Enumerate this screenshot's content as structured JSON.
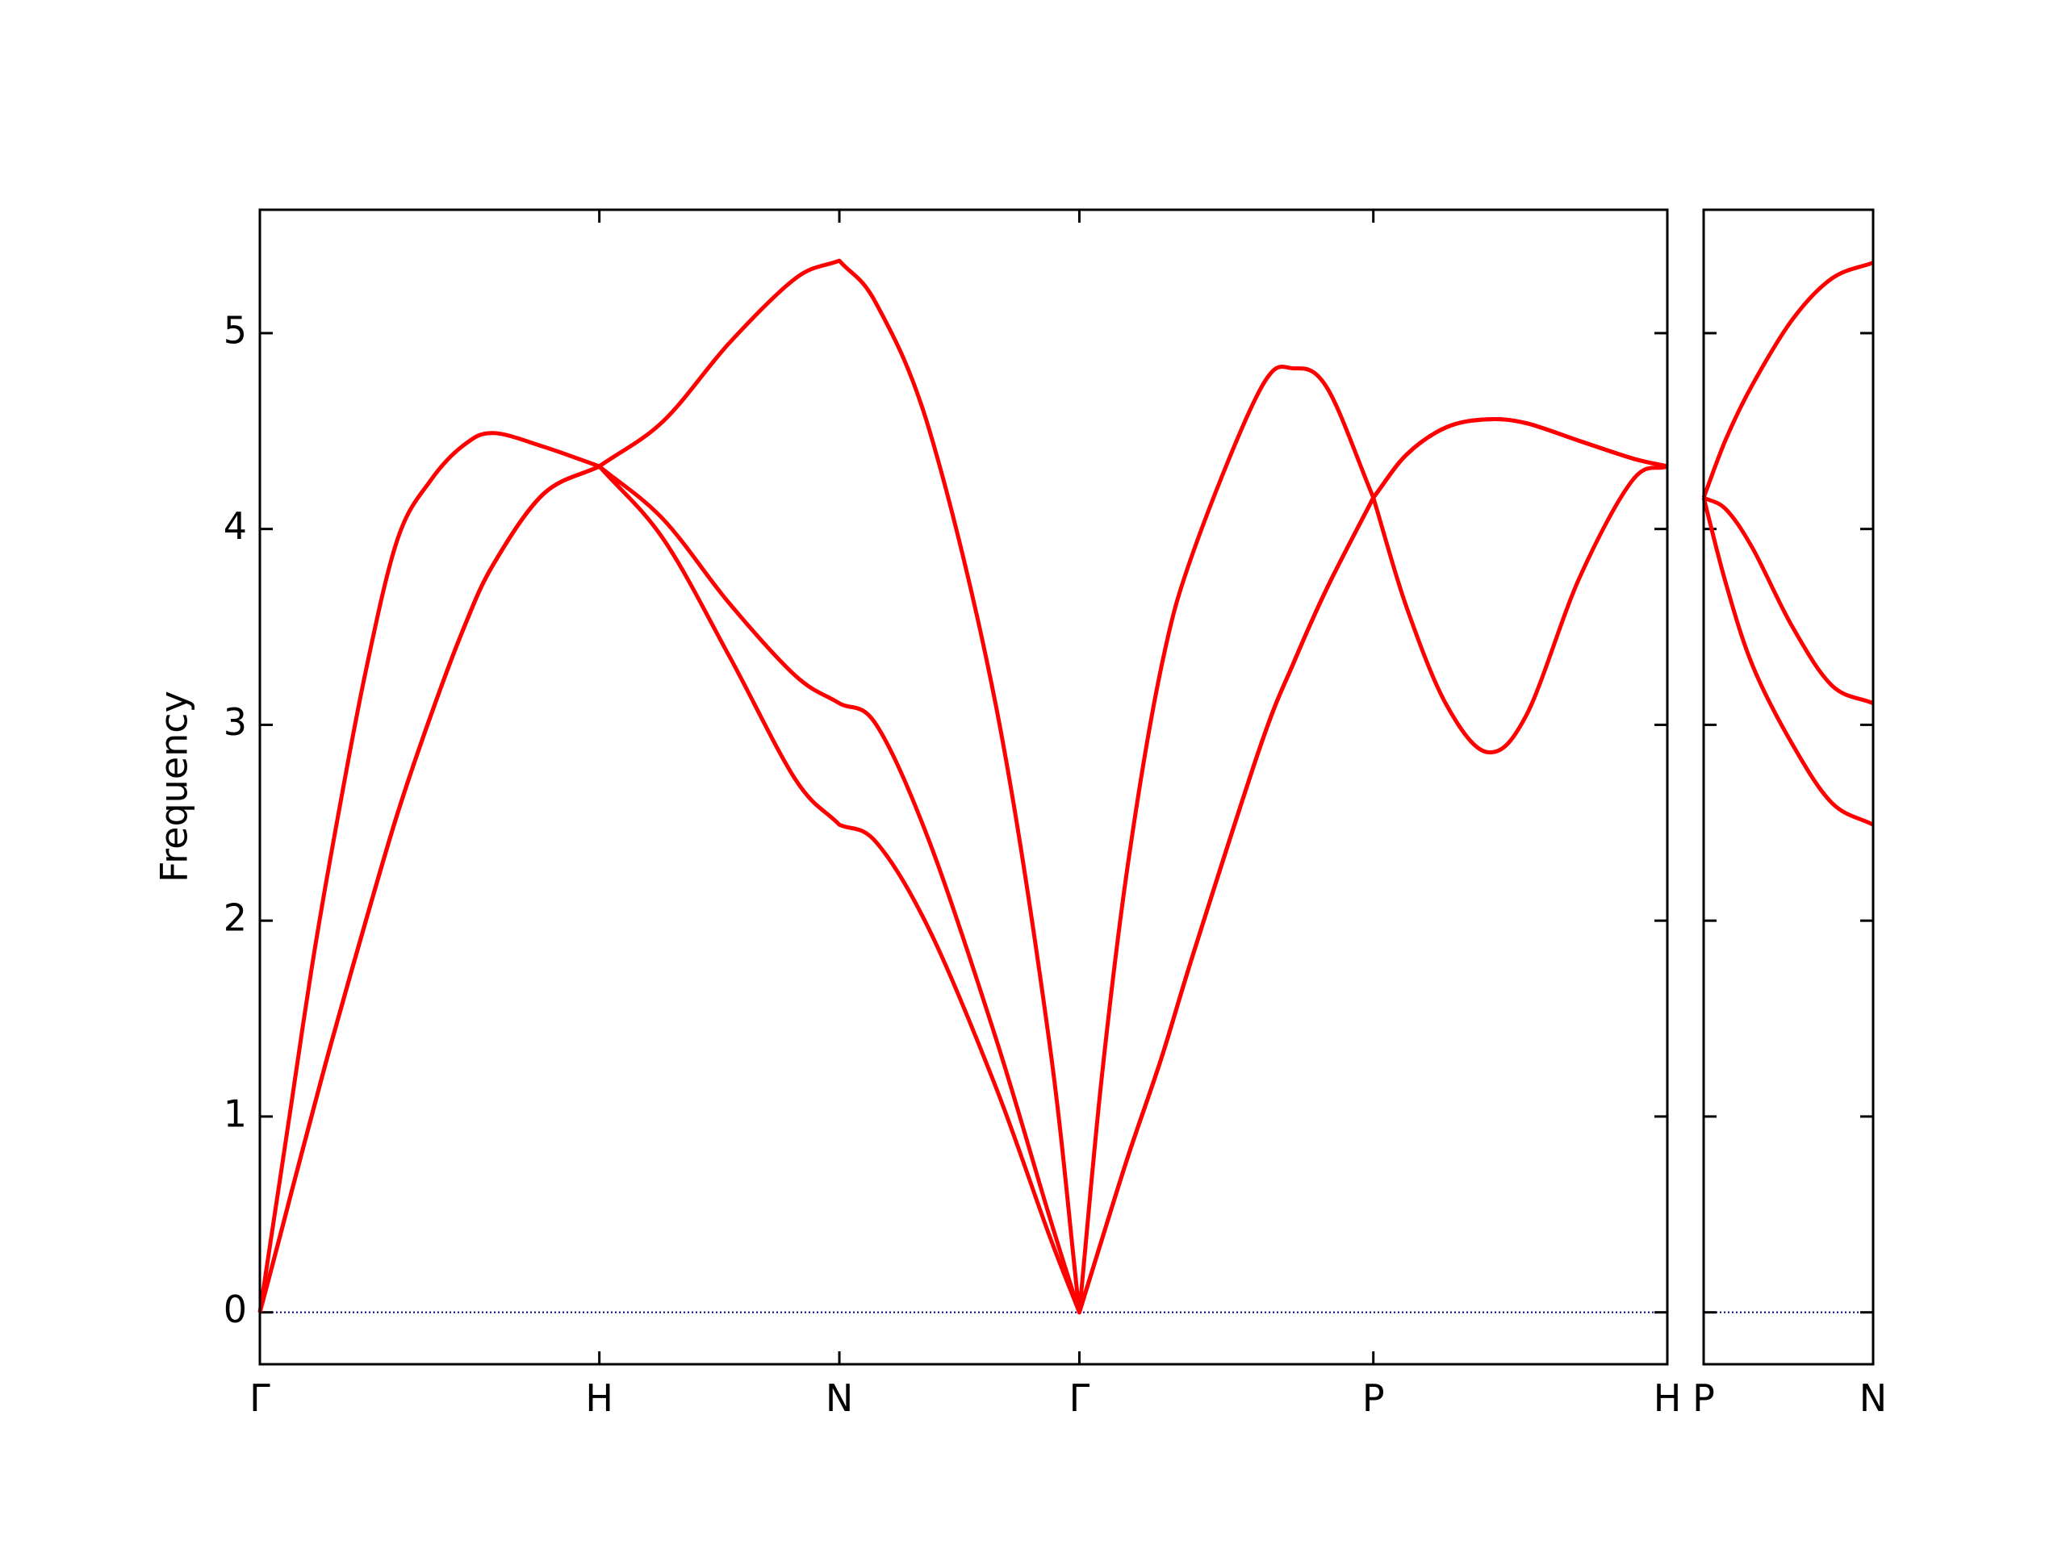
{
  "chart_data": [
    {
      "type": "line",
      "ylabel": "Frequency",
      "x": [
        0,
        0.055,
        0.094,
        0.152,
        0.211,
        0.309,
        0.406,
        0.504,
        0.602,
        0.688,
        0.836,
        1.0,
        1.188,
        1.383,
        1.578,
        1.707,
        1.816,
        1.973,
        2.168,
        2.324,
        2.414,
        2.48,
        2.558,
        2.656,
        2.753,
        2.949,
        3.046,
        3.144,
        3.28,
        3.378,
        3.496,
        3.617,
        3.731,
        3.887,
        4.044,
        4.146
      ],
      "series": [
        {
          "color": "#ff0000",
          "values": [
            0,
            0.36,
            0.62,
            1.0,
            1.38,
            1.98,
            2.55,
            3.05,
            3.5,
            3.82,
            4.18,
            4.32,
            3.95,
            3.35,
            2.72,
            2.49,
            2.4,
            1.95,
            1.15,
            0.4,
            0,
            0.37,
            0.8,
            1.3,
            1.85,
            2.9,
            3.32,
            3.7,
            4.16,
            3.6,
            3.1,
            2.86,
            3.05,
            3.75,
            4.25,
            4.32
          ]
        },
        {
          "color": "#ff0000",
          "values": [
            0,
            0.36,
            0.62,
            1.0,
            1.38,
            1.98,
            2.55,
            3.05,
            3.5,
            3.82,
            4.18,
            4.32,
            4.05,
            3.62,
            3.25,
            3.11,
            3.0,
            2.4,
            1.4,
            0.5,
            0,
            0.37,
            0.8,
            1.3,
            1.85,
            2.9,
            3.32,
            3.7,
            4.16,
            4.38,
            4.52,
            4.56,
            4.54,
            4.45,
            4.36,
            4.32
          ]
        },
        {
          "color": "#ff0000",
          "values": [
            0,
            0.63,
            1.08,
            1.75,
            2.35,
            3.25,
            3.95,
            4.25,
            4.43,
            4.49,
            4.42,
            4.32,
            4.55,
            4.95,
            5.28,
            5.37,
            5.15,
            4.5,
            3.1,
            1.4,
            0,
            1.2,
            2.3,
            3.3,
            3.9,
            4.72,
            4.82,
            4.72,
            4.16,
            4.38,
            4.52,
            4.56,
            4.54,
            4.45,
            4.36,
            4.32
          ]
        }
      ],
      "xlim": [
        0,
        4.146
      ],
      "xticks": [
        {
          "value": 0,
          "label": "Γ"
        },
        {
          "value": 1.0,
          "label": "H"
        },
        {
          "value": 1.707,
          "label": "N"
        },
        {
          "value": 2.414,
          "label": "Γ"
        },
        {
          "value": 3.28,
          "label": "P"
        },
        {
          "value": 4.146,
          "label": "H"
        }
      ],
      "ylim": [
        -0.265,
        5.63
      ],
      "yticks": [
        0,
        1,
        2,
        3,
        4,
        5
      ],
      "show_ytick_labels": true,
      "hline": {
        "y": 0,
        "color": "#00008b",
        "style": "dotted"
      }
    },
    {
      "type": "line",
      "x": [
        0,
        0.066,
        0.145,
        0.262,
        0.379,
        0.5
      ],
      "series": [
        {
          "color": "#ff0000",
          "values": [
            4.16,
            3.72,
            3.3,
            2.9,
            2.6,
            2.49
          ]
        },
        {
          "color": "#ff0000",
          "values": [
            4.16,
            4.1,
            3.9,
            3.5,
            3.2,
            3.11
          ]
        },
        {
          "color": "#ff0000",
          "values": [
            4.16,
            4.46,
            4.74,
            5.07,
            5.28,
            5.36
          ]
        }
      ],
      "xlim": [
        0,
        0.5
      ],
      "xticks": [
        {
          "value": 0,
          "label": "P"
        },
        {
          "value": 0.5,
          "label": "N"
        }
      ],
      "ylim": [
        -0.265,
        5.63
      ],
      "yticks": [
        0,
        1,
        2,
        3,
        4,
        5
      ],
      "show_ytick_labels": false,
      "hline": {
        "y": 0,
        "color": "#00008b",
        "style": "dotted"
      }
    }
  ]
}
